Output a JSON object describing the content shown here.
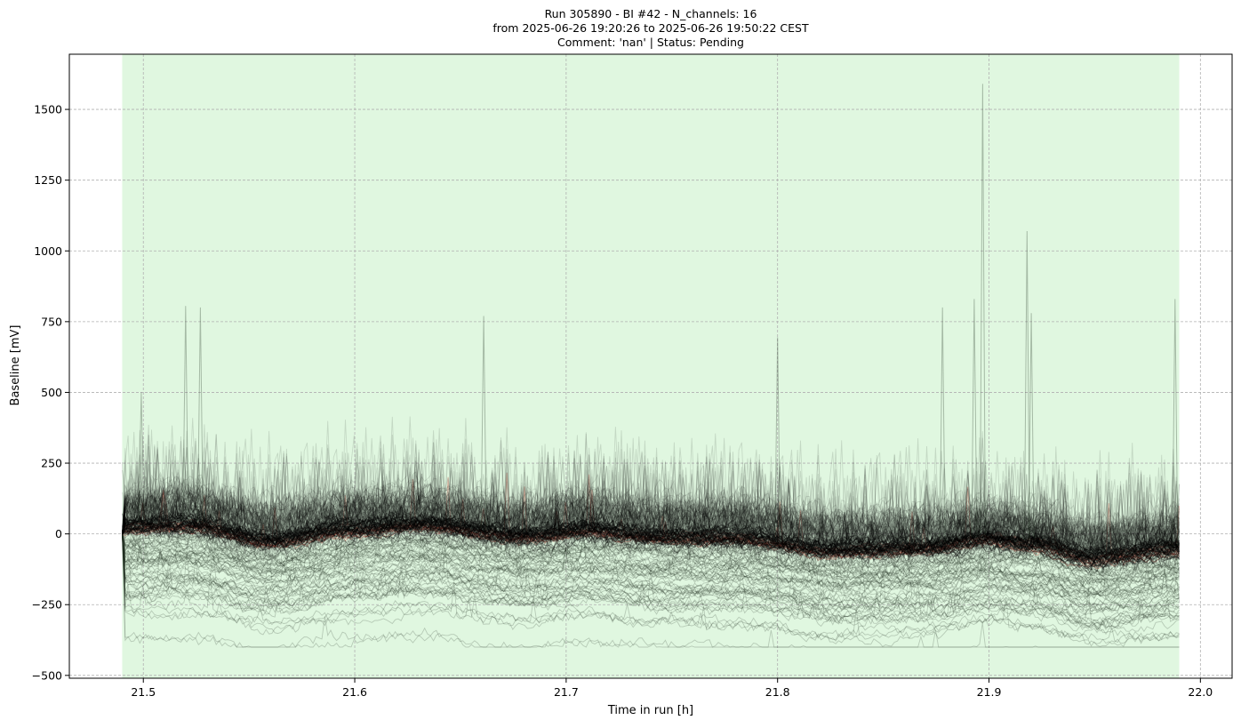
{
  "header": {
    "title_line1": "Run 305890  -  BI #42  -  N_channels: 16",
    "title_line2": "from  2025-06-26 19:20:26  to  2025-06-26 19:50:22 CEST",
    "title_line3": "Comment: 'nan' | Status: Pending"
  },
  "colors": {
    "background": "#ffffff",
    "shade": "#e0f7e0",
    "trace_main": "#000000",
    "trace_faint": "#1f2f1f",
    "trace_red": "#c0392b",
    "grid": "#b0b0b0"
  },
  "chart_data": {
    "type": "line",
    "title": "Run 305890  -  BI #42  -  N_channels: 16\nfrom  2025-06-26 19:20:26  to  2025-06-26 19:50:22 CEST\nComment: 'nan' | Status: Pending",
    "xlabel": "Time in run [h]",
    "ylabel": "Baseline [mV]",
    "xlim": [
      21.465,
      22.015
    ],
    "ylim": [
      -510,
      1695
    ],
    "xticks": [
      21.5,
      21.6,
      21.7,
      21.8,
      21.9,
      22.0
    ],
    "xtick_labels": [
      "21.5",
      "21.6",
      "21.7",
      "21.8",
      "21.9",
      "22.0"
    ],
    "yticks": [
      -500,
      -250,
      0,
      250,
      500,
      750,
      1000,
      1250,
      1500
    ],
    "ytick_labels": [
      "−500",
      "−250",
      "0",
      "250",
      "500",
      "750",
      "1000",
      "1250",
      "1500"
    ],
    "grid": true,
    "shaded_region": {
      "x_start": 21.49,
      "x_end": 21.99
    },
    "series_summary": {
      "description_values": "many overlapping baseline traces; dense band between about -50 and 250 mV with spikes up to about 800 mV",
      "trend_x": [
        21.49,
        21.52,
        21.56,
        21.6,
        21.63,
        21.68,
        21.71,
        21.75,
        21.78,
        21.83,
        21.87,
        21.9,
        21.92,
        21.95,
        21.99
      ],
      "trend_lower_y": [
        0,
        5,
        -50,
        -10,
        5,
        -35,
        -15,
        -40,
        -40,
        -85,
        -75,
        -45,
        -60,
        -110,
        -80
      ],
      "spikes": [
        {
          "x": 21.499,
          "y": 500
        },
        {
          "x": 21.52,
          "y": 805
        },
        {
          "x": 21.527,
          "y": 800
        },
        {
          "x": 21.661,
          "y": 770
        },
        {
          "x": 21.8,
          "y": 695
        },
        {
          "x": 21.878,
          "y": 800
        },
        {
          "x": 21.893,
          "y": 830
        },
        {
          "x": 21.897,
          "y": 1590
        },
        {
          "x": 21.918,
          "y": 1070
        },
        {
          "x": 21.92,
          "y": 780
        },
        {
          "x": 21.988,
          "y": 830
        }
      ]
    }
  }
}
